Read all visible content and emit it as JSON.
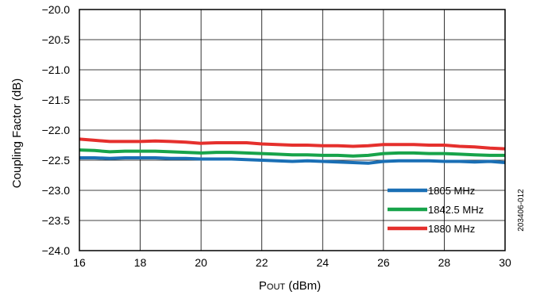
{
  "chart_data": {
    "type": "line",
    "title": "",
    "xlabel": "POUT (dBm)",
    "xlabel_parts": {
      "main": "P",
      "sub": "OUT",
      "unit": " (dBm)"
    },
    "ylabel": "Coupling Factor (dB)",
    "xlim": [
      16,
      30
    ],
    "ylim": [
      -24.0,
      -20.0
    ],
    "grid": true,
    "legend_position": "bottom-right",
    "x_ticks": [
      "16",
      "18",
      "20",
      "22",
      "24",
      "26",
      "28",
      "30"
    ],
    "y_ticks": [
      "−20.0",
      "−20.5",
      "−21.0",
      "−21.5",
      "−22.0",
      "−22.5",
      "−23.0",
      "−23.5",
      "−24.0"
    ],
    "x_tick_values": [
      16,
      18,
      20,
      22,
      24,
      26,
      28,
      30
    ],
    "y_tick_values": [
      -20.0,
      -20.5,
      -21.0,
      -21.5,
      -22.0,
      -22.5,
      -23.0,
      -23.5,
      -24.0
    ],
    "x": [
      16,
      16.5,
      17,
      17.5,
      18,
      18.5,
      19,
      19.5,
      20,
      20.5,
      21,
      21.5,
      22,
      22.5,
      23,
      23.5,
      24,
      24.5,
      25,
      25.5,
      26,
      26.5,
      27,
      27.5,
      28,
      28.5,
      29,
      29.5,
      30
    ],
    "series": [
      {
        "name": "1805 MHz",
        "color": "#1a6fb5",
        "values": [
          -22.46,
          -22.46,
          -22.47,
          -22.46,
          -22.46,
          -22.46,
          -22.47,
          -22.47,
          -22.48,
          -22.48,
          -22.48,
          -22.49,
          -22.5,
          -22.51,
          -22.52,
          -22.51,
          -22.52,
          -22.53,
          -22.54,
          -22.55,
          -22.52,
          -22.51,
          -22.51,
          -22.51,
          -22.52,
          -22.52,
          -22.53,
          -22.52,
          -22.54
        ]
      },
      {
        "name": "1842.5 MHz",
        "color": "#17a34a",
        "values": [
          -22.33,
          -22.34,
          -22.36,
          -22.35,
          -22.35,
          -22.35,
          -22.36,
          -22.37,
          -22.38,
          -22.37,
          -22.37,
          -22.38,
          -22.39,
          -22.4,
          -22.41,
          -22.41,
          -22.42,
          -22.42,
          -22.43,
          -22.42,
          -22.39,
          -22.38,
          -22.38,
          -22.39,
          -22.39,
          -22.4,
          -22.41,
          -22.42,
          -22.42
        ]
      },
      {
        "name": "1880 MHz",
        "color": "#e5302d",
        "values": [
          -22.15,
          -22.17,
          -22.19,
          -22.19,
          -22.19,
          -22.18,
          -22.19,
          -22.2,
          -22.22,
          -22.21,
          -22.21,
          -22.21,
          -22.23,
          -22.24,
          -22.25,
          -22.25,
          -22.26,
          -22.26,
          -22.27,
          -22.26,
          -22.24,
          -22.24,
          -22.24,
          -22.25,
          -22.25,
          -22.27,
          -22.28,
          -22.3,
          -22.31
        ]
      }
    ],
    "side_note": "203406-012"
  }
}
